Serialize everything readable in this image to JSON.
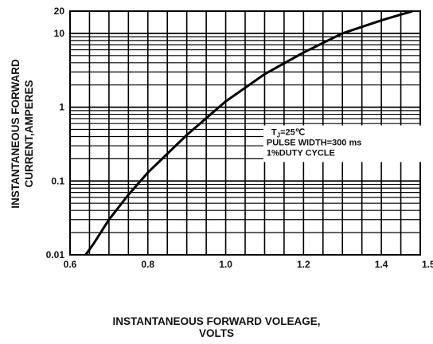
{
  "chart_data": {
    "type": "line",
    "x_scale": "linear",
    "y_scale": "log",
    "xlim": [
      0.6,
      1.5
    ],
    "ylim": [
      0.01,
      20
    ],
    "x_ticks": [
      0.6,
      0.8,
      1.0,
      1.2,
      1.4,
      1.5
    ],
    "x_tick_labels": [
      "0.6",
      "0.8",
      "1.0",
      "1.2",
      "1.4",
      "1.5"
    ],
    "y_ticks": [
      0.01,
      0.1,
      1,
      10,
      20
    ],
    "y_tick_labels": [
      "0.01",
      "0.1",
      "1",
      "10",
      "20"
    ],
    "ylabel_line1": "INSTANTANEOUS FORWARD",
    "ylabel_line2": "CURRENT,AMPERES",
    "xlabel_line1": "INSTANTANEOUS FORWARD VOLEAGE,",
    "xlabel_line2": "VOLTS",
    "annotation": {
      "line1": "T",
      "line1_sub": "J",
      "line1_rest": "=25℃",
      "line2": "PULSE WIDTH=300 ms",
      "line3": "1%DUTY CYCLE"
    },
    "grid": true,
    "series": [
      {
        "x": [
          0.64,
          0.66,
          0.7,
          0.75,
          0.8,
          0.9,
          1.0,
          1.1,
          1.2,
          1.3,
          1.4,
          1.48
        ],
        "y": [
          0.01,
          0.014,
          0.03,
          0.065,
          0.13,
          0.42,
          1.2,
          2.8,
          5.5,
          10,
          15,
          20
        ]
      }
    ]
  }
}
